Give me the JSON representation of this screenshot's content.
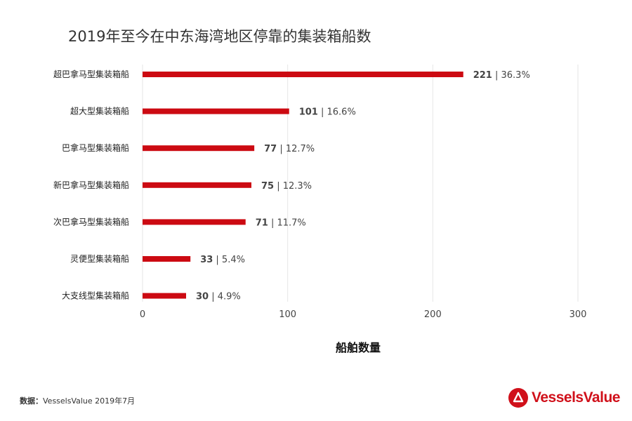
{
  "title": "2019年至今在中东海湾地区停靠的集装箱船数",
  "source": {
    "prefix": "数据：",
    "text": "VesselsValue 2019年7月"
  },
  "logo": {
    "text": "VesselsValue"
  },
  "colors": {
    "bar": "#cc0a12",
    "grid": "#e6e6e6",
    "brand": "#d0101a"
  },
  "chart_data": {
    "type": "bar",
    "orientation": "horizontal",
    "categories": [
      "超巴拿马型集装箱船",
      "超大型集装箱船",
      "巴拿马型集装箱船",
      "新巴拿马型集装箱船",
      "次巴拿马型集装箱船",
      "灵便型集装箱船",
      "大支线型集装箱船"
    ],
    "values": [
      221,
      101,
      77,
      75,
      71,
      33,
      30
    ],
    "value_labels": [
      "221",
      "101",
      "77",
      "75",
      "71",
      "33",
      "30"
    ],
    "percent_labels": [
      "36.3%",
      "16.6%",
      "12.7%",
      "12.3%",
      "11.7%",
      "5.4%",
      "4.9%"
    ],
    "xlabel": "船舶数量",
    "ylabel": "",
    "xlim": [
      0,
      300
    ],
    "xticks": [
      0,
      100,
      200,
      300
    ],
    "grid": true
  }
}
